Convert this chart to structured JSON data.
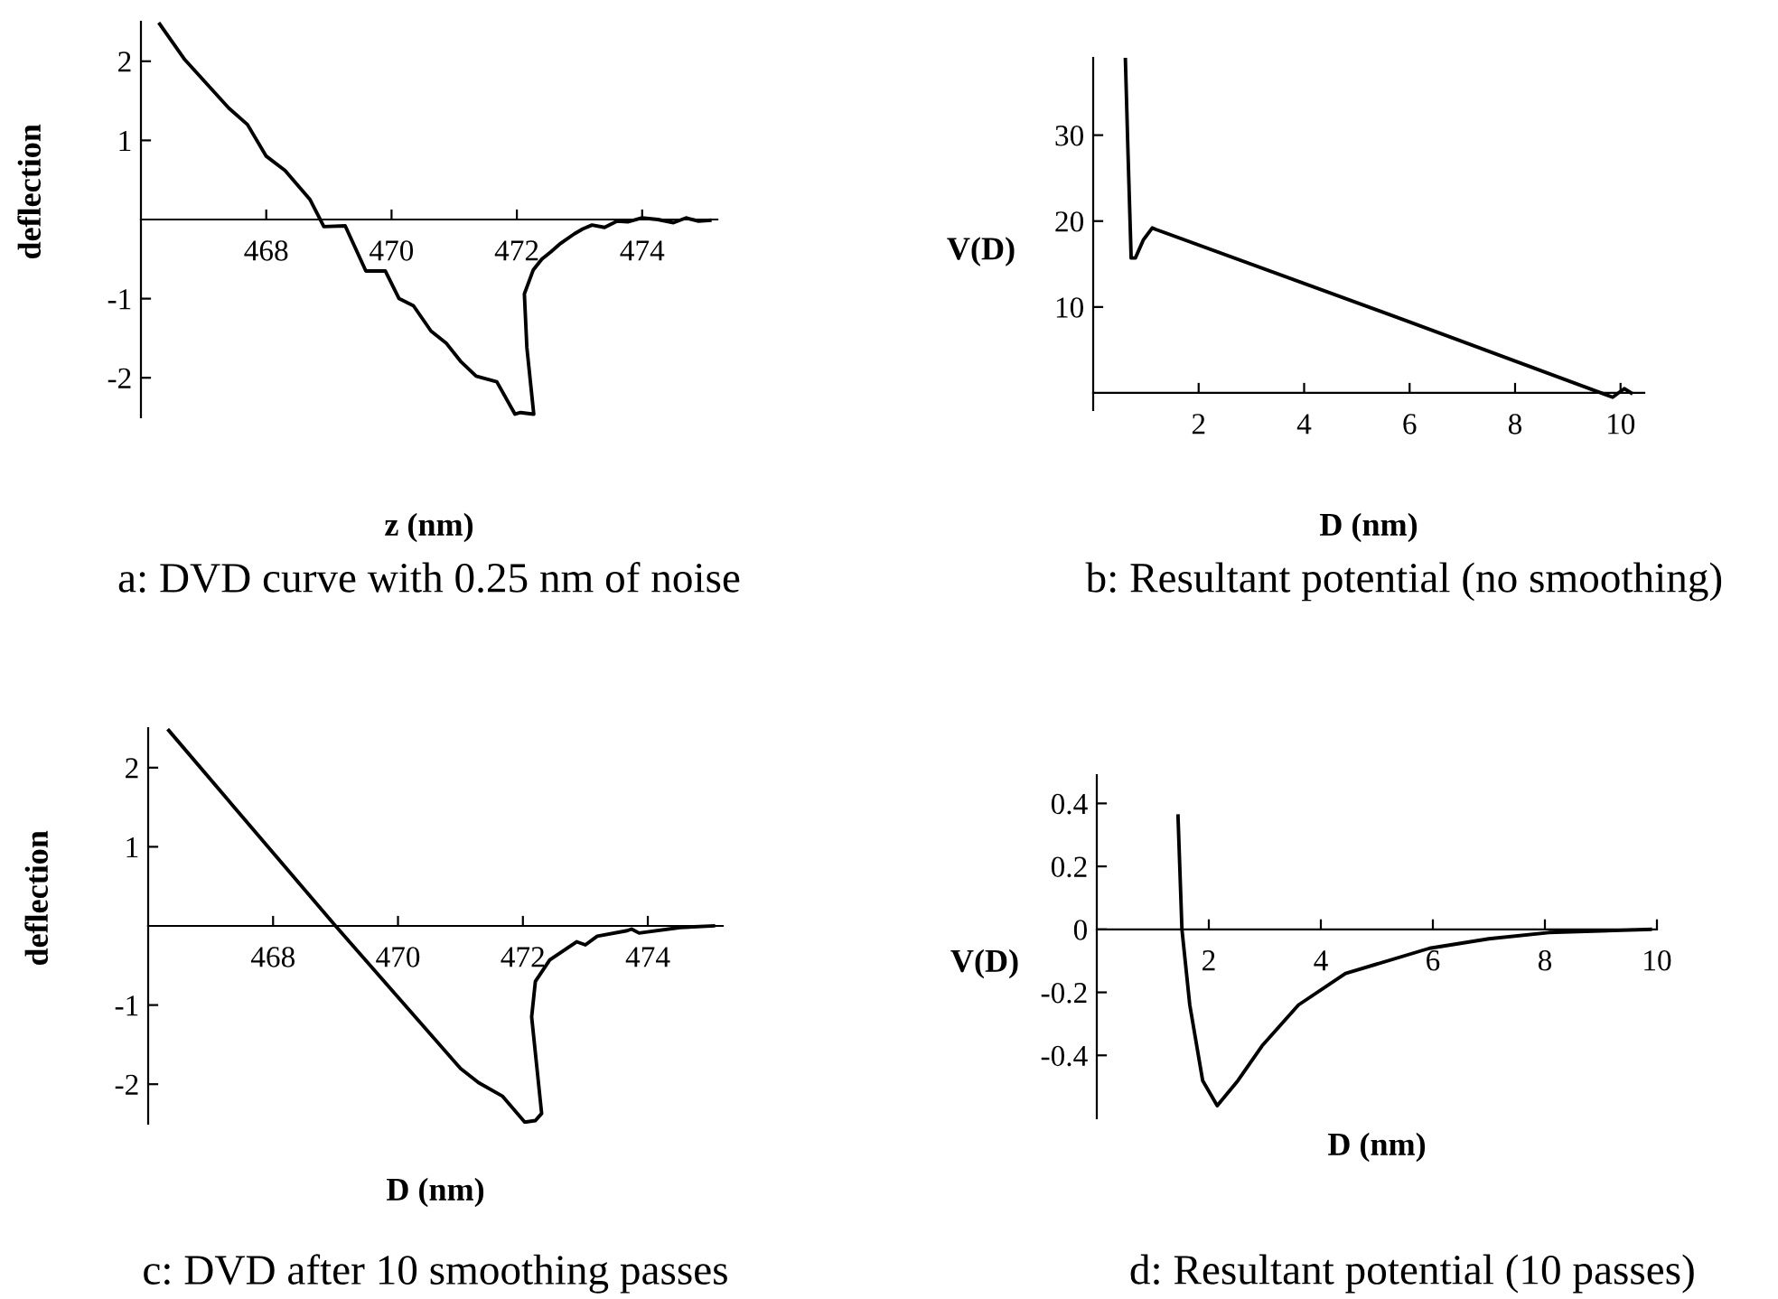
{
  "chart_data": [
    {
      "type": "line",
      "title": "a: DVD curve with 0.25 nm of noise",
      "xlabel": "z (nm)",
      "ylabel": "deflection",
      "xlim": [
        466,
        475.2
      ],
      "ylim": [
        -2.5,
        2.5
      ],
      "xticks": [
        468,
        470,
        472,
        474
      ],
      "yticks": [
        -2,
        -1,
        1,
        2
      ],
      "series": [
        {
          "color": "#000000",
          "x": [
            466.3,
            466.7,
            467.4,
            467.7,
            468.0,
            468.3,
            468.7,
            468.92,
            469.26,
            469.59,
            469.9,
            470.12,
            470.35,
            470.63,
            470.87,
            471.1,
            471.35,
            471.68,
            471.97,
            472.06,
            472.27,
            472.16,
            472.12,
            472.26,
            472.4,
            472.54,
            472.7,
            472.92,
            473.05,
            473.2,
            473.4,
            473.6,
            473.77,
            474.0,
            474.25,
            474.5,
            474.7,
            474.9,
            475.08
          ],
          "values": [
            2.47,
            2.02,
            1.41,
            1.2,
            0.8,
            0.62,
            0.25,
            -0.09,
            -0.08,
            -0.65,
            -0.65,
            -1.0,
            -1.09,
            -1.41,
            -1.56,
            -1.79,
            -1.98,
            -2.05,
            -2.46,
            -2.44,
            -2.46,
            -1.62,
            -0.94,
            -0.64,
            -0.5,
            -0.41,
            -0.3,
            -0.18,
            -0.12,
            -0.07,
            -0.1,
            -0.02,
            -0.03,
            0.02,
            0.0,
            -0.04,
            0.02,
            -0.02,
            -0.01
          ]
        }
      ]
    },
    {
      "type": "line",
      "title": "b: Resultant potential (no smoothing)",
      "xlabel": "D (nm)",
      "ylabel": "V(D)",
      "xlim": [
        0,
        10.45
      ],
      "ylim": [
        -2,
        39
      ],
      "xticks": [
        2,
        4,
        6,
        8,
        10
      ],
      "yticks": [
        10,
        20,
        30
      ],
      "series": [
        {
          "color": "#000000",
          "x": [
            0.61,
            0.66,
            0.72,
            0.8,
            0.95,
            1.12,
            1.2,
            5.94,
            9.85,
            9.96,
            10.07,
            10.2
          ],
          "values": [
            39,
            28,
            15.7,
            15.7,
            17.8,
            19.2,
            19.0,
            8.4,
            -0.5,
            0,
            0.5,
            0
          ]
        }
      ]
    },
    {
      "type": "line",
      "title": "c: DVD after 10 smoothing passes",
      "xlabel": "D (nm)",
      "ylabel": "deflection",
      "xlim": [
        466,
        475.2
      ],
      "ylim": [
        -2.5,
        2.5
      ],
      "xticks": [
        468,
        470,
        472,
        474
      ],
      "yticks": [
        -2,
        -1,
        1,
        2
      ],
      "series": [
        {
          "color": "#000000",
          "x": [
            466.33,
            469.0,
            471.0,
            471.29,
            471.67,
            472.03,
            472.2,
            472.3,
            472.14,
            472.2,
            472.43,
            472.86,
            473.0,
            473.19,
            473.67,
            473.74,
            473.86,
            474.52,
            475.05
          ],
          "values": [
            2.47,
            0,
            -1.8,
            -1.98,
            -2.15,
            -2.48,
            -2.46,
            -2.37,
            -1.15,
            -0.7,
            -0.43,
            -0.2,
            -0.24,
            -0.13,
            -0.06,
            -0.04,
            -0.09,
            -0.02,
            0
          ]
        }
      ]
    },
    {
      "type": "line",
      "title": "d: Resultant potential (10 passes)",
      "xlabel": "D (nm)",
      "ylabel": "V(D)",
      "xlim": [
        0,
        10
      ],
      "ylim": [
        -0.6,
        0.49
      ],
      "xticks": [
        2,
        4,
        6,
        8,
        10
      ],
      "yticks": [
        -0.4,
        -0.2,
        0,
        0.2,
        0.4
      ],
      "series": [
        {
          "color": "#000000",
          "x": [
            1.45,
            1.52,
            1.66,
            1.89,
            2.15,
            2.52,
            2.95,
            3.6,
            4.44,
            5.94,
            7.0,
            8.07,
            9.88
          ],
          "values": [
            0.36,
            0,
            -0.24,
            -0.48,
            -0.56,
            -0.48,
            -0.37,
            -0.24,
            -0.14,
            -0.06,
            -0.03,
            -0.01,
            0
          ]
        }
      ]
    }
  ]
}
